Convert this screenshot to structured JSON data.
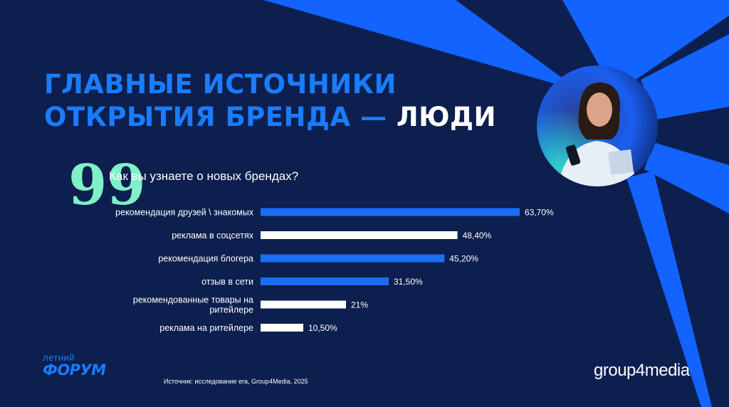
{
  "title": {
    "line1": "ГЛАВНЫЕ ИСТОЧНИКИ",
    "line2_prefix": "ОТКРЫТИЯ БРЕНДА — ",
    "line2_accent": "ЛЮДИ"
  },
  "question": {
    "quote_mark": "99",
    "text": "Как вы узнаете о новых брендах?"
  },
  "chart_data": {
    "type": "bar",
    "orientation": "horizontal",
    "title": "Как вы узнаете о новых брендах?",
    "xlabel": "",
    "ylabel": "",
    "xlim": [
      0,
      63.7
    ],
    "grid": false,
    "categories": [
      [
        "рекомендация друзей \\ знакомых"
      ],
      [
        "реклама в соцсетях"
      ],
      [
        "рекомендация блогера"
      ],
      [
        "отзыв в сети"
      ],
      [
        "рекомендованные товары на",
        "ритейлере"
      ],
      [
        "реклама на ритейлере"
      ]
    ],
    "values": [
      63.7,
      48.4,
      45.2,
      31.5,
      21,
      10.5
    ],
    "value_labels": [
      "63,70%",
      "48,40%",
      "45,20%",
      "31,50%",
      "21%",
      "10,50%"
    ],
    "bar_colors": [
      "#1a6ef5",
      "#ffffff",
      "#1a6ef5",
      "#1a6ef5",
      "#ffffff",
      "#ffffff"
    ]
  },
  "footer": {
    "logo_left_small": "летний",
    "logo_left_big": "ФОРУМ",
    "source": "Источник: исследование ега, Group4Media, 2025",
    "logo_right": "group4media"
  },
  "colors": {
    "background": "#0d1f4e",
    "accent_blue": "#1a6ef5",
    "title_blue": "#1a7cff",
    "quote_mint": "#7ff0c8"
  }
}
